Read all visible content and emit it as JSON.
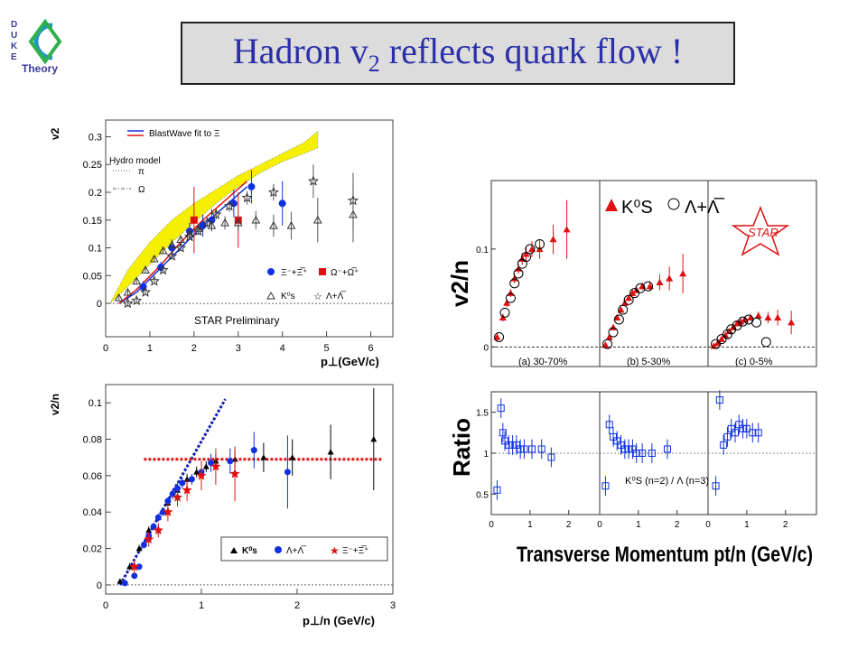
{
  "logo": {
    "letters": [
      "D",
      "U",
      "K",
      "E"
    ],
    "word": "Theory"
  },
  "title": {
    "pre": "Hadron v",
    "sub": "2",
    "post": " reflects quark flow !"
  },
  "chart_data": [
    {
      "type": "scatter",
      "ylabel": "v2",
      "xlabel": "p⊥(GeV/c)",
      "xlim": [
        0,
        6.5
      ],
      "ylim": [
        -0.06,
        0.33
      ],
      "xticks": [
        "0",
        "1",
        "2",
        "3",
        "4",
        "5",
        "6"
      ],
      "yticks": [
        "0",
        "0.05",
        "0.1",
        "0.15",
        "0.2",
        "0.25",
        "0.3"
      ],
      "legend_fit": "BlastWave fit to Ξ",
      "legend_hydro": [
        "Hydro model",
        "π",
        "Ω"
      ],
      "legend_markers": [
        "Ξ⁻+Ξ̅⁺",
        "Ω⁻+Ω̅⁺",
        "K⁰s",
        "Λ+Λ̅"
      ],
      "annotation": "STAR Preliminary",
      "hydro_band": {
        "x": [
          0.1,
          0.5,
          1.0,
          1.5,
          2.0,
          2.5,
          3.0,
          3.5,
          4.0,
          4.5,
          4.8
        ],
        "low": [
          0,
          0.03,
          0.07,
          0.11,
          0.145,
          0.18,
          0.21,
          0.235,
          0.255,
          0.27,
          0.28
        ],
        "high": [
          0,
          0.06,
          0.11,
          0.15,
          0.18,
          0.205,
          0.23,
          0.25,
          0.27,
          0.29,
          0.31
        ]
      },
      "blastwave": {
        "x": [
          0.3,
          0.7,
          1.2,
          1.7,
          2.2,
          2.7,
          3.2
        ],
        "blue": [
          0,
          0.02,
          0.06,
          0.1,
          0.14,
          0.175,
          0.21
        ],
        "red": [
          0,
          0.025,
          0.065,
          0.11,
          0.15,
          0.185,
          0.22
        ]
      },
      "series": [
        {
          "name": "Ξ⁻+Ξ̅⁺",
          "marker": "circle",
          "color": "#1030e0",
          "x": [
            0.85,
            1.25,
            1.5,
            1.9,
            2.2,
            2.4,
            2.9,
            3.3,
            4.0
          ],
          "y": [
            0.03,
            0.065,
            0.1,
            0.13,
            0.14,
            0.15,
            0.18,
            0.21,
            0.18
          ],
          "err": [
            0.01,
            0.01,
            0.015,
            0.015,
            0.02,
            0.02,
            0.025,
            0.03,
            0.04
          ]
        },
        {
          "name": "Ω⁻+Ω̅⁺",
          "marker": "square",
          "color": "#e01010",
          "x": [
            2.0,
            3.0
          ],
          "y": [
            0.15,
            0.15
          ],
          "err": [
            0.06,
            0.05
          ]
        },
        {
          "name": "K⁰s",
          "marker": "triangle",
          "color": "#333333",
          "x": [
            0.3,
            0.5,
            0.7,
            0.9,
            1.1,
            1.3,
            1.5,
            1.7,
            1.9,
            2.1,
            2.4,
            2.7,
            3.0,
            3.4,
            3.8,
            4.2,
            4.8,
            5.6
          ],
          "y": [
            0.01,
            0.02,
            0.04,
            0.06,
            0.08,
            0.095,
            0.105,
            0.115,
            0.125,
            0.135,
            0.14,
            0.145,
            0.145,
            0.15,
            0.14,
            0.14,
            0.15,
            0.16
          ],
          "err": [
            0.005,
            0.005,
            0.005,
            0.005,
            0.005,
            0.006,
            0.006,
            0.007,
            0.008,
            0.009,
            0.01,
            0.012,
            0.014,
            0.016,
            0.02,
            0.025,
            0.04,
            0.05
          ]
        },
        {
          "name": "Λ+Λ̅",
          "marker": "star",
          "color": "#333333",
          "x": [
            0.5,
            0.7,
            0.9,
            1.1,
            1.3,
            1.5,
            1.7,
            1.9,
            2.1,
            2.3,
            2.5,
            2.8,
            3.2,
            3.8,
            4.7,
            5.6
          ],
          "y": [
            0,
            0.005,
            0.02,
            0.04,
            0.06,
            0.085,
            0.1,
            0.12,
            0.13,
            0.145,
            0.16,
            0.175,
            0.19,
            0.2,
            0.22,
            0.185
          ],
          "err": [
            0.005,
            0.005,
            0.005,
            0.005,
            0.005,
            0.005,
            0.005,
            0.006,
            0.007,
            0.008,
            0.009,
            0.01,
            0.012,
            0.015,
            0.03,
            0.05
          ]
        }
      ]
    },
    {
      "type": "scatter",
      "ylabel": "v2/n",
      "xlabel": "p⊥/n (GeV/c)",
      "xlim": [
        0,
        3
      ],
      "ylim": [
        -0.005,
        0.11
      ],
      "xticks": [
        "0",
        "1",
        "2",
        "3"
      ],
      "yticks": [
        "0",
        "0.02",
        "0.04",
        "0.06",
        "0.08",
        "0.1"
      ],
      "legend": [
        "K⁰s",
        "Λ+Λ̅",
        "Ξ⁻+Ξ̅⁺"
      ],
      "fit_line": {
        "x": [
          0.15,
          1.25
        ],
        "y": [
          0,
          0.102
        ]
      },
      "plateau": {
        "x": [
          0.4,
          2.9
        ],
        "y": 0.069
      },
      "series": [
        {
          "name": "K⁰s",
          "marker": "triangle",
          "color": "#000000",
          "x": [
            0.15,
            0.25,
            0.35,
            0.45,
            0.55,
            0.65,
            0.75,
            0.85,
            0.95,
            1.05,
            1.15,
            1.35,
            1.65,
            1.95,
            2.35,
            2.8
          ],
          "y": [
            0.002,
            0.01,
            0.02,
            0.03,
            0.037,
            0.045,
            0.052,
            0.058,
            0.062,
            0.065,
            0.068,
            0.069,
            0.07,
            0.07,
            0.073,
            0.08
          ],
          "err": [
            0.001,
            0.002,
            0.002,
            0.002,
            0.002,
            0.002,
            0.002,
            0.003,
            0.003,
            0.003,
            0.004,
            0.005,
            0.008,
            0.01,
            0.015,
            0.028
          ]
        },
        {
          "name": "Λ+Λ̅",
          "marker": "circle",
          "color": "#1030e0",
          "x": [
            0.2,
            0.3,
            0.35,
            0.4,
            0.45,
            0.5,
            0.55,
            0.6,
            0.65,
            0.7,
            0.75,
            0.8,
            0.9,
            1.0,
            1.1,
            1.3,
            1.55,
            1.9
          ],
          "y": [
            0.001,
            0.005,
            0.01,
            0.022,
            0.027,
            0.032,
            0.037,
            0.04,
            0.046,
            0.05,
            0.053,
            0.056,
            0.058,
            0.062,
            0.067,
            0.068,
            0.074,
            0.062
          ],
          "err": [
            0.001,
            0.001,
            0.001,
            0.002,
            0.002,
            0.002,
            0.002,
            0.002,
            0.002,
            0.003,
            0.003,
            0.003,
            0.003,
            0.004,
            0.005,
            0.007,
            0.01,
            0.02
          ]
        },
        {
          "name": "Ξ⁻+Ξ̅⁺",
          "marker": "star",
          "color": "#e01010",
          "x": [
            0.3,
            0.45,
            0.55,
            0.65,
            0.75,
            0.85,
            1.0,
            1.15,
            1.35
          ],
          "y": [
            0.01,
            0.025,
            0.03,
            0.04,
            0.048,
            0.052,
            0.06,
            0.065,
            0.061
          ],
          "err": [
            0.004,
            0.004,
            0.004,
            0.005,
            0.005,
            0.006,
            0.008,
            0.01,
            0.015
          ]
        }
      ]
    },
    {
      "type": "scatter",
      "panels": [
        "(a) 30-70%",
        "(b) 5-30%",
        "(c) 0-5%"
      ],
      "ylabel_top": "v2/n",
      "ylabel_bottom": "Ratio",
      "xlabel": "Transverse Momentum pt/n (GeV/c)",
      "legend": [
        "K⁰S",
        "Λ+Λ̅"
      ],
      "ratio_label": "K⁰S (n=2) / Λ (n=3)",
      "logo_text": "STAR",
      "xlim": [
        0,
        2.8
      ],
      "xticks": [
        "0",
        "1",
        "2"
      ],
      "ylim_top": [
        -0.02,
        0.17
      ],
      "yticks_top": [
        "0",
        "0.1"
      ],
      "ylim_bottom": [
        0.25,
        1.75
      ],
      "yticks_bottom": [
        "0.5",
        "1",
        "1.5"
      ],
      "panels_data": [
        {
          "ks": {
            "x": [
              0.15,
              0.3,
              0.4,
              0.5,
              0.6,
              0.7,
              0.8,
              0.9,
              1.05,
              1.25,
              1.6,
              1.95
            ],
            "y": [
              0.01,
              0.03,
              0.045,
              0.055,
              0.07,
              0.08,
              0.09,
              0.095,
              0.1,
              0.1,
              0.11,
              0.12
            ],
            "err": [
              0.004,
              0.004,
              0.004,
              0.004,
              0.005,
              0.005,
              0.006,
              0.007,
              0.008,
              0.01,
              0.015,
              0.03
            ]
          },
          "la": {
            "x": [
              0.2,
              0.35,
              0.5,
              0.6,
              0.7,
              0.8,
              0.9,
              1.0,
              1.25
            ],
            "y": [
              0.01,
              0.035,
              0.05,
              0.065,
              0.075,
              0.085,
              0.092,
              0.1,
              0.105
            ]
          },
          "ratio": {
            "x": [
              0.15,
              0.25,
              0.3,
              0.35,
              0.45,
              0.55,
              0.65,
              0.75,
              0.85,
              1.05,
              1.3,
              1.55
            ],
            "y": [
              0.55,
              1.55,
              1.25,
              1.15,
              1.1,
              1.1,
              1.1,
              1.05,
              1.05,
              1.05,
              1.05,
              0.95
            ]
          }
        },
        {
          "ks": {
            "x": [
              0.15,
              0.25,
              0.35,
              0.45,
              0.55,
              0.65,
              0.75,
              0.85,
              0.95,
              1.1,
              1.3,
              1.55,
              1.8,
              2.15
            ],
            "y": [
              0.002,
              0.01,
              0.02,
              0.03,
              0.038,
              0.045,
              0.05,
              0.055,
              0.058,
              0.062,
              0.062,
              0.066,
              0.07,
              0.075
            ],
            "err": [
              0.002,
              0.002,
              0.002,
              0.002,
              0.002,
              0.002,
              0.003,
              0.003,
              0.003,
              0.004,
              0.005,
              0.008,
              0.012,
              0.02
            ]
          },
          "la": {
            "x": [
              0.2,
              0.35,
              0.5,
              0.6,
              0.75,
              0.9,
              1.05,
              1.25
            ],
            "y": [
              0.003,
              0.015,
              0.028,
              0.038,
              0.048,
              0.055,
              0.06,
              0.062
            ]
          },
          "ratio": {
            "x": [
              0.15,
              0.25,
              0.35,
              0.45,
              0.55,
              0.65,
              0.75,
              0.85,
              0.95,
              1.1,
              1.35,
              1.75
            ],
            "y": [
              0.6,
              1.35,
              1.2,
              1.15,
              1.1,
              1.05,
              1.05,
              1.05,
              1.0,
              1.0,
              1.0,
              1.05
            ]
          }
        },
        {
          "ks": {
            "x": [
              0.15,
              0.25,
              0.35,
              0.45,
              0.55,
              0.65,
              0.75,
              0.85,
              0.95,
              1.1,
              1.3,
              1.55,
              1.8,
              2.15
            ],
            "y": [
              0.001,
              0.004,
              0.008,
              0.012,
              0.016,
              0.02,
              0.024,
              0.026,
              0.028,
              0.03,
              0.032,
              0.03,
              0.03,
              0.025
            ],
            "err": [
              0.002,
              0.002,
              0.002,
              0.002,
              0.002,
              0.002,
              0.002,
              0.002,
              0.003,
              0.003,
              0.004,
              0.006,
              0.008,
              0.012
            ]
          },
          "la": {
            "x": [
              0.2,
              0.35,
              0.5,
              0.6,
              0.75,
              0.9,
              1.05,
              1.25,
              1.5
            ],
            "y": [
              0.003,
              0.008,
              0.013,
              0.018,
              0.022,
              0.026,
              0.028,
              0.025,
              0.005
            ]
          },
          "ratio": {
            "x": [
              0.2,
              0.3,
              0.4,
              0.5,
              0.6,
              0.7,
              0.8,
              0.9,
              1.0,
              1.15,
              1.3
            ],
            "y": [
              0.6,
              1.65,
              1.1,
              1.2,
              1.3,
              1.25,
              1.35,
              1.3,
              1.3,
              1.25,
              1.25
            ]
          }
        }
      ]
    }
  ]
}
